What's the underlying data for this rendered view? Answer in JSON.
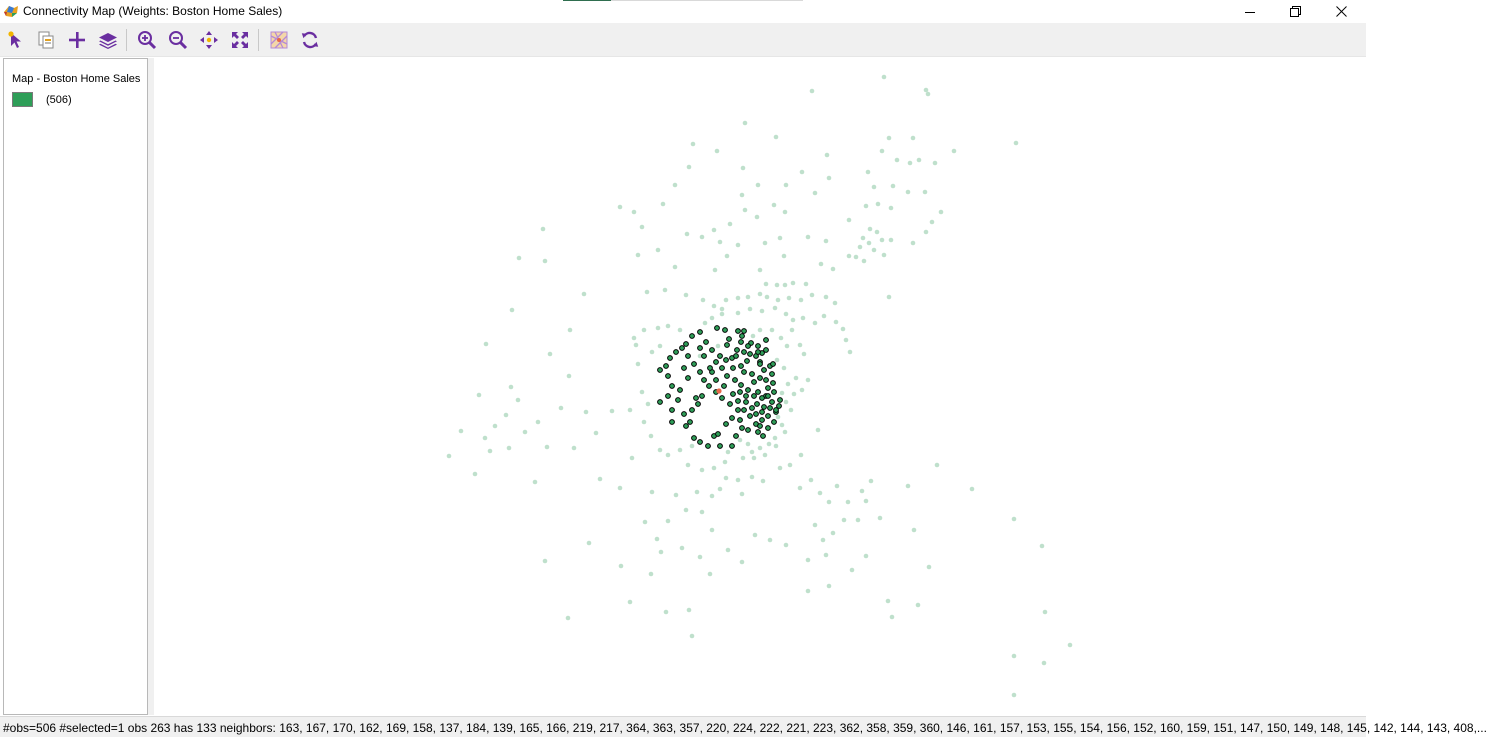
{
  "window": {
    "title": "Connectivity Map (Weights: Boston Home Sales)",
    "icons": {
      "minimize": "minimize-icon",
      "restore": "restore-icon",
      "close": "close-icon"
    }
  },
  "toolbar": {
    "tools": [
      "select-pointer-icon",
      "copy-image-icon",
      "add-layer-plus-icon",
      "layers-icon",
      "zoom-in-icon",
      "zoom-out-icon",
      "pan-icon",
      "fit-extent-icon",
      "basemap-icon",
      "refresh-icon"
    ]
  },
  "legend": {
    "title": "Map - Boston Home Sales",
    "count": "(506)",
    "swatch_color": "#2e9e58"
  },
  "map": {
    "colors": {
      "background_point": "#bfe0cc",
      "neighbor_fill": "#2e9e58",
      "neighbor_stroke": "#000000",
      "selected_point": "#e8684a"
    }
  },
  "status": {
    "text": "#obs=506 #selected=1  obs 263 has 133 neighbors: 163, 167, 170, 162, 169, 158, 137, 184, 139, 165, 166, 219, 217, 364, 363, 357, 220, 224, 222, 221, 223, 362, 358, 359, 360, 146, 161, 157, 153, 155, 154, 156, 152, 160, 159, 151, 147, 150, 149, 148, 145, 142, 144, 143, 408,..."
  }
}
